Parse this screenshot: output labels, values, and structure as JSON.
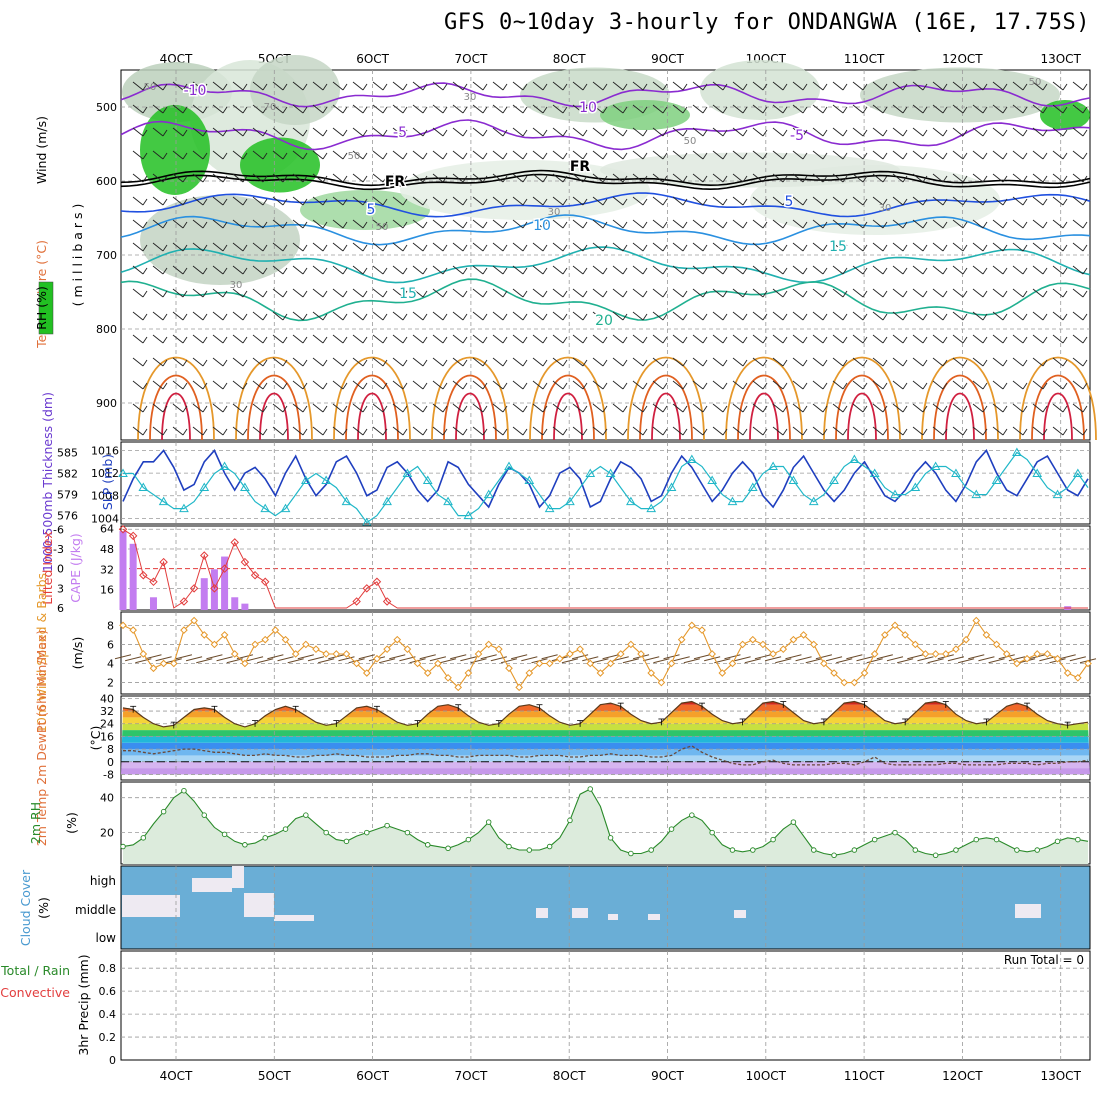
{
  "title": "GFS 0~10day 3-hourly for ONDANGWA (16E, 17.75S)",
  "colors": {
    "grid": "#9a9a9a",
    "rh_green": "#22c022",
    "rh_grey": "#9bad9b",
    "slp": "#1f3fbf",
    "thickness": "#20b7c8",
    "lifted": "#e23d3d",
    "cape": "#c37df0",
    "speed": "#e5982b",
    "barbs": "#6a4a2a",
    "rh2m": "#2a8a2a",
    "cloud": "#6aaed6",
    "temp_frz": "#0d0d0d"
  },
  "chart_data": [
    {
      "type": "line",
      "panel": "upper-air",
      "ylabel_wind": "Wind (m/s)",
      "ylabel_temp": "Temperature (°C)",
      "ylabel_rh": "RH (%)",
      "ylabel_pressure": "( m i l l i b a r s )",
      "yticks": [
        "500",
        "600",
        "700",
        "800",
        "900"
      ],
      "ylim": [
        450,
        950
      ],
      "x_labels": [
        "4OCT",
        "5OCT",
        "6OCT",
        "7OCT",
        "8OCT",
        "9OCT",
        "10OCT",
        "11OCT",
        "12OCT",
        "13OCT"
      ],
      "isotherm_labels": [
        "-10",
        "-5",
        "FR",
        "5",
        "10",
        "15",
        "20",
        "10",
        "-5",
        "FR",
        "5",
        "15",
        "5"
      ],
      "rh_labels": [
        "50",
        "70",
        "50",
        "30",
        "50",
        "30",
        "30",
        "50",
        "30",
        "50"
      ]
    },
    {
      "type": "line",
      "panel": "slp-thickness",
      "ylabel_left": "1000-500mb Thickness (dm)",
      "ylabel_right": "SLP (mb)",
      "yticks_left": [
        "585",
        "582",
        "579",
        "576"
      ],
      "yticks_right": [
        "1016",
        "1012",
        "1008",
        "1004"
      ],
      "series": [
        {
          "name": "SLP",
          "values": [
            1007,
            1011,
            1014,
            1014,
            1016,
            1013,
            1009,
            1010,
            1014,
            1016,
            1012,
            1009,
            1012,
            1013,
            1011,
            1008,
            1012,
            1015,
            1011,
            1008,
            1010,
            1014,
            1015,
            1012,
            1008,
            1009,
            1013,
            1014,
            1012,
            1009,
            1007,
            1009,
            1014,
            1013,
            1010,
            1008,
            1006,
            1010,
            1013,
            1012,
            1010,
            1006,
            1008,
            1012,
            1013,
            1011,
            1006,
            1007,
            1011,
            1014,
            1013,
            1011,
            1007,
            1008,
            1012,
            1015,
            1013,
            1010,
            1007,
            1009,
            1012,
            1014,
            1012,
            1008,
            1006,
            1009,
            1013,
            1015,
            1012,
            1009,
            1007,
            1009,
            1012,
            1014,
            1011,
            1008,
            1007,
            1009,
            1012,
            1014,
            1012,
            1009,
            1007,
            1010,
            1014,
            1016,
            1012,
            1009,
            1008,
            1011,
            1014,
            1015,
            1012,
            1009,
            1008,
            1011
          ]
        },
        {
          "name": "Thickness",
          "values": [
            582,
            582,
            580,
            579,
            578,
            577,
            577,
            578,
            580,
            582,
            583,
            582,
            580,
            578,
            577,
            576,
            577,
            579,
            581,
            582,
            581,
            580,
            578,
            577,
            575,
            576,
            578,
            580,
            582,
            583,
            581,
            579,
            578,
            576,
            576,
            577,
            579,
            581,
            583,
            582,
            581,
            579,
            577,
            577,
            578,
            580,
            582,
            583,
            582,
            580,
            578,
            577,
            577,
            578,
            580,
            583,
            584,
            583,
            581,
            579,
            578,
            578,
            580,
            582,
            583,
            583,
            581,
            579,
            578,
            579,
            581,
            583,
            584,
            583,
            582,
            580,
            579,
            579,
            580,
            582,
            583,
            583,
            582,
            580,
            579,
            579,
            581,
            583,
            585,
            584,
            582,
            580,
            579,
            580,
            582,
            580
          ]
        }
      ]
    },
    {
      "type": "bar",
      "panel": "lifted-cape",
      "ylabel_left": "Lifted Index",
      "ylabel_right": "CAPE (J/kg)",
      "yticks_left": [
        "-6",
        "-3",
        "0",
        "3",
        "6"
      ],
      "yticks_right": [
        "64",
        "48",
        "32",
        "16"
      ],
      "series": [
        {
          "name": "Lifted Index",
          "values": [
            -6,
            -5,
            1,
            2,
            -1,
            6,
            5,
            3,
            -2,
            3,
            0,
            -4,
            -1,
            1,
            2,
            6,
            6,
            6,
            6,
            6,
            6,
            6,
            6,
            5,
            3,
            2,
            5,
            6,
            6,
            6,
            6,
            6,
            6,
            6,
            6,
            6,
            6,
            6,
            6,
            6,
            6,
            6,
            6,
            6,
            6,
            6,
            6,
            6,
            6,
            6,
            6,
            6,
            6,
            6,
            6,
            6,
            6,
            6,
            6,
            6,
            6,
            6,
            6,
            6,
            6,
            6,
            6,
            6,
            6,
            6,
            6,
            6,
            6,
            6,
            6,
            6,
            6,
            6,
            6,
            6,
            6,
            6,
            6,
            6,
            6,
            6,
            6,
            6,
            6,
            6,
            6,
            6,
            6,
            6,
            6,
            6
          ]
        },
        {
          "name": "CAPE",
          "values": [
            62,
            52,
            0,
            10,
            0,
            0,
            0,
            0,
            25,
            32,
            42,
            10,
            5,
            0,
            0,
            0,
            0,
            0,
            0,
            0,
            0,
            0,
            0,
            0,
            0,
            0,
            0,
            0,
            0,
            0,
            0,
            0,
            0,
            0,
            0,
            0,
            0,
            0,
            0,
            0,
            0,
            0,
            0,
            0,
            0,
            0,
            0,
            0,
            0,
            0,
            0,
            0,
            0,
            0,
            0,
            0,
            0,
            0,
            0,
            0,
            0,
            0,
            0,
            0,
            0,
            0,
            0,
            0,
            0,
            0,
            0,
            0,
            0,
            0,
            0,
            0,
            0,
            0,
            0,
            0,
            0,
            0,
            0,
            0,
            0,
            0,
            0,
            0,
            0,
            0,
            0,
            0,
            0,
            3,
            0,
            0
          ]
        }
      ]
    },
    {
      "type": "line",
      "panel": "wind10m",
      "ylabel": "10m Wind Speed & Barbs",
      "unit": "(m/s)",
      "yticks": [
        "8",
        "6",
        "4",
        "2"
      ],
      "series": [
        {
          "name": "Speed",
          "values": [
            8,
            7.5,
            5,
            3.5,
            4,
            4,
            7.5,
            8.5,
            7,
            6,
            7,
            5,
            4,
            6,
            6.5,
            7.5,
            6.5,
            5,
            6,
            5.5,
            5,
            5,
            5,
            4,
            3,
            4.5,
            5.5,
            6.5,
            5.5,
            4,
            3,
            4,
            2.5,
            1.5,
            3,
            5,
            6,
            5.5,
            3.5,
            1.5,
            3,
            4,
            4,
            4.5,
            5,
            5.5,
            4,
            3,
            4,
            5,
            6,
            5,
            3,
            2,
            4,
            6.5,
            8,
            7.5,
            5,
            3,
            4,
            6,
            6.5,
            6,
            5,
            5.5,
            6.5,
            7,
            6,
            4,
            3,
            2,
            2,
            3,
            5,
            7,
            8,
            7,
            6,
            5,
            5,
            5,
            5.5,
            6.5,
            8.5,
            7,
            6,
            5,
            4,
            4.5,
            5,
            5,
            4.5,
            3,
            2.5,
            4
          ]
        }
      ]
    },
    {
      "type": "area",
      "panel": "temp2m",
      "ylabel": "2m Temp 2m DewPt (6hr Min/Max)",
      "unit": "(°C)",
      "yticks": [
        "40",
        "32",
        "24",
        "16",
        "8",
        "0",
        "-8"
      ],
      "series": [
        {
          "name": "Temp",
          "values": [
            34,
            33,
            28,
            24,
            22,
            23,
            28,
            33,
            34,
            33,
            28,
            24,
            22,
            24,
            29,
            33,
            35,
            33,
            29,
            25,
            23,
            24,
            29,
            34,
            35,
            33,
            29,
            25,
            23,
            24,
            30,
            35,
            36,
            34,
            29,
            25,
            23,
            24,
            30,
            35,
            36,
            34,
            29,
            25,
            23,
            24,
            30,
            36,
            37,
            35,
            30,
            26,
            24,
            25,
            31,
            37,
            38,
            35,
            30,
            26,
            24,
            25,
            31,
            37,
            38,
            36,
            31,
            26,
            24,
            25,
            31,
            37,
            38,
            36,
            31,
            26,
            24,
            25,
            31,
            37,
            38,
            36,
            30,
            26,
            24,
            25,
            30,
            35,
            37,
            35,
            30,
            26,
            24,
            23,
            24,
            25
          ]
        },
        {
          "name": "DewPt",
          "values": [
            7,
            7,
            6,
            5,
            6,
            7,
            8,
            8,
            7,
            6,
            6,
            5,
            4,
            4,
            5,
            4,
            4,
            3,
            3,
            4,
            4,
            5,
            4,
            4,
            3,
            3,
            3,
            4,
            4,
            5,
            5,
            4,
            4,
            3,
            3,
            4,
            4,
            4,
            4,
            3,
            3,
            4,
            4,
            4,
            3,
            3,
            4,
            4,
            5,
            4,
            4,
            4,
            3,
            3,
            4,
            8,
            10,
            6,
            3,
            1,
            -1,
            -2,
            -2,
            0,
            1,
            -1,
            -2,
            -2,
            -2,
            -2,
            -1,
            -1,
            -2,
            0,
            3,
            -1,
            -2,
            -2,
            -2,
            -2,
            -2,
            -1,
            -1,
            -2,
            -2,
            -2,
            -2,
            -1,
            -1,
            -1,
            -2,
            -1,
            -1,
            0,
            0,
            1
          ]
        }
      ]
    },
    {
      "type": "area",
      "panel": "rh2m",
      "ylabel": "2m RH",
      "unit": "(%)",
      "yticks": [
        "40",
        "20"
      ],
      "series": [
        {
          "name": "RH",
          "values": [
            12,
            13,
            17,
            25,
            32,
            40,
            44,
            38,
            30,
            23,
            19,
            15,
            13,
            14,
            17,
            19,
            22,
            28,
            30,
            25,
            20,
            16,
            15,
            18,
            20,
            22,
            24,
            22,
            20,
            16,
            13,
            12,
            11,
            13,
            16,
            20,
            26,
            17,
            12,
            10,
            10,
            10,
            12,
            17,
            27,
            42,
            45,
            35,
            17,
            10,
            8,
            8,
            10,
            15,
            22,
            27,
            30,
            27,
            20,
            13,
            10,
            9,
            10,
            12,
            16,
            22,
            26,
            18,
            10,
            8,
            7,
            8,
            10,
            13,
            16,
            18,
            20,
            16,
            10,
            8,
            7,
            8,
            10,
            13,
            16,
            17,
            16,
            13,
            10,
            9,
            10,
            12,
            15,
            17,
            16,
            15
          ]
        }
      ]
    },
    {
      "type": "bar",
      "panel": "cloud",
      "ylabel": "Cloud Cover",
      "unit": "(%)",
      "level_labels": [
        "high",
        "middle",
        "low"
      ]
    },
    {
      "type": "bar",
      "panel": "precip",
      "ylabel_left": "Total / Rain",
      "ylabel_right": "Convective",
      "ylabel": "3hr Precip (mm)",
      "yticks": [
        "0.8",
        "0.6",
        "0.4",
        "0.2",
        "0"
      ],
      "run_total": "Run Total = 0",
      "x_labels": [
        "4OCT",
        "5OCT",
        "6OCT",
        "7OCT",
        "8OCT",
        "9OCT",
        "10OCT",
        "11OCT",
        "12OCT",
        "13OCT"
      ]
    }
  ]
}
